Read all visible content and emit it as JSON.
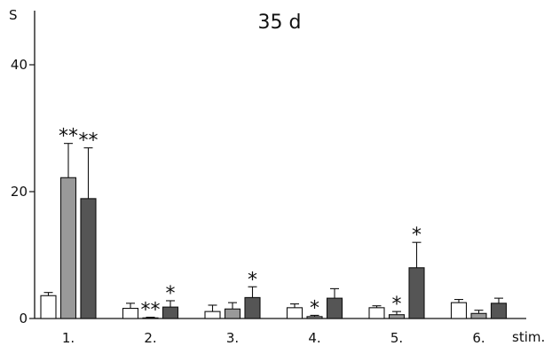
{
  "chart_data": {
    "type": "bar",
    "title": "35 d",
    "ylabel": "S",
    "xlabel": "stim.",
    "ylim": [
      0,
      50
    ],
    "yticks": [
      0,
      20,
      40
    ],
    "categories": [
      "1.",
      "2.",
      "3.",
      "4.",
      "5.",
      "6."
    ],
    "series": [
      {
        "color": "#ffffff",
        "values": [
          3.6,
          1.6,
          1.1,
          1.7,
          1.7,
          2.5
        ],
        "errors": [
          0.5,
          0.8,
          1.0,
          0.6,
          0.3,
          0.5
        ],
        "annotations": [
          "",
          "",
          "",
          "",
          "",
          ""
        ]
      },
      {
        "color": "#999999",
        "values": [
          22.2,
          0.1,
          1.5,
          0.3,
          0.6,
          0.8
        ],
        "errors": [
          5.4,
          0.1,
          1.0,
          0.2,
          0.5,
          0.5
        ],
        "annotations": [
          "**",
          "**",
          "",
          "*",
          "*",
          ""
        ]
      },
      {
        "color": "#555555",
        "values": [
          18.9,
          1.8,
          3.3,
          3.2,
          8.0,
          2.4
        ],
        "errors": [
          8.0,
          1.0,
          1.7,
          1.5,
          4.0,
          0.8
        ],
        "annotations": [
          "**",
          "*",
          "*",
          "",
          "*",
          ""
        ]
      }
    ],
    "grid": false,
    "legend": "none"
  }
}
